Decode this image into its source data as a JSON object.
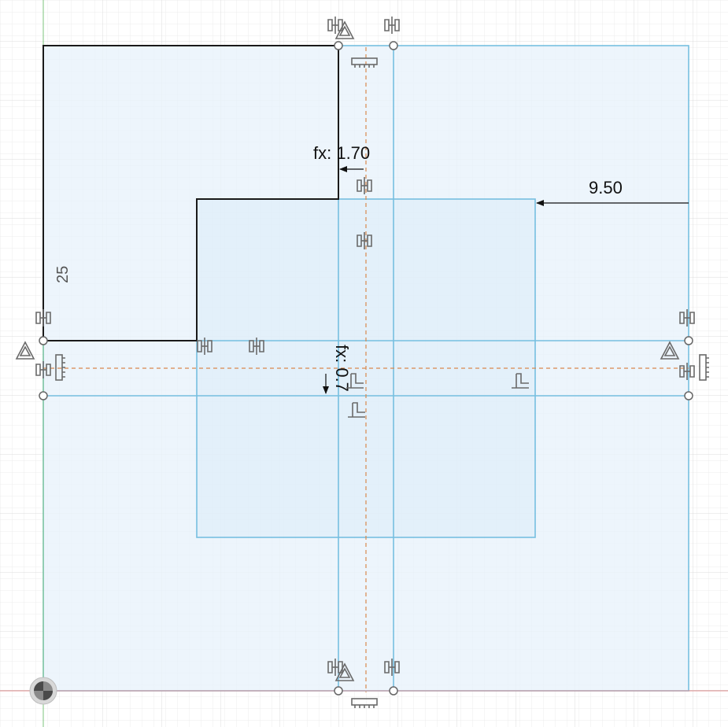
{
  "viewport": {
    "name": "sketch-canvas",
    "colors": {
      "background": "#ffffff",
      "grid_minor": "#ececec",
      "grid_major": "#dcdcdc",
      "region_fill": "#e8f3fb",
      "construction_line": "#76bfe0",
      "profile_line": "#1a1a1a",
      "center_line": "#d9884e",
      "dimension_text": "#111111",
      "constraint_glyph": "#6a6a6a"
    }
  },
  "dimensions": {
    "fx_top": {
      "text": "fx: 1.70"
    },
    "horizontal": {
      "text": "9.50"
    },
    "vertical_left": {
      "text": "25"
    },
    "fx_center": {
      "text": "fx: 0.7"
    }
  },
  "constraint_icons": {
    "horizontal_vertical": "coincident-bracket-icon",
    "midpoint": "midpoint-triangle-icon",
    "fix": "fix-comb-icon",
    "perpendicular": "perpendicular-icon",
    "origin": "origin-icon"
  }
}
